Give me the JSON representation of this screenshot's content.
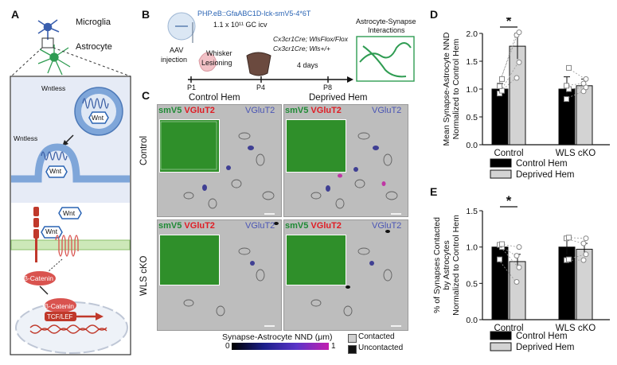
{
  "panels": {
    "A": {
      "label": "A",
      "microglia": "Microglia",
      "astrocyte": "Astrocyte",
      "wntless_1": "Wntless",
      "wntless_2": "Wntless",
      "wnt_1": "Wnt",
      "wnt_2": "Wnt",
      "wnt_3": "Wnt",
      "wnt_4": "Wnt",
      "beta_catenin_1": "β-Catenin",
      "beta_catenin_2": "β-Catenin",
      "tcf_lef": "TCF/LEF"
    },
    "B": {
      "label": "B",
      "virus": "PHP.eB::GfaABC1D-lck-smV5-4*6T",
      "dose": "1.1 x 10¹¹ GC icv",
      "aav_1": "AAV",
      "aav_2": "injection",
      "whisker_1": "Whisker",
      "whisker_2": "Lesioning",
      "genotype_1": "Cx3cr1Cre; WlsFlox/Flox",
      "genotype_2": "Cx3cr1Cre; Wls+/+",
      "duration": "4 days",
      "timepoints": [
        "P1",
        "P4",
        "P8"
      ],
      "interactions_1": "Astrocyte-Synapse",
      "interactions_2": "Interactions"
    },
    "C": {
      "label": "C",
      "col_1": "Control Hem",
      "col_2": "Deprived Hem",
      "row_1": "Control",
      "row_2": "WLS cKO",
      "smv5": "smV5",
      "vglut2": "VGluT2",
      "scale_title": "Synapse-Astrocyte NND (μm)",
      "scale_min": "0",
      "scale_max": "1",
      "contacted": "Contacted",
      "uncontacted": "Uncontacted"
    },
    "D": {
      "label": "D"
    },
    "E": {
      "label": "E"
    }
  },
  "colors": {
    "control_hem": "#000000",
    "deprived_hem": "#d3d3d3",
    "smv5": "#1f8a35",
    "vglut2": "#e01c24",
    "vglut2_blue": "#4a55b5",
    "wnt_blue": "#2a64b4",
    "catenin_red": "#d9534f"
  },
  "chart_data": [
    {
      "type": "bar",
      "panel": "D",
      "categories": [
        "Control",
        "WLS cKO"
      ],
      "series": [
        {
          "name": "Control Hem",
          "values": [
            1.0,
            1.0
          ],
          "errors": [
            0.1,
            0.22
          ]
        },
        {
          "name": "Deprived Hem",
          "values": [
            1.77,
            1.06
          ],
          "errors": [
            0.23,
            0.12
          ]
        }
      ],
      "points": {
        "Control": {
          "Control Hem": [
            0.92,
            0.97,
            1.05,
            1.18
          ],
          "Deprived Hem": [
            1.2,
            1.48,
            1.97,
            2.02
          ]
        },
        "WLS cKO": {
          "Control Hem": [
            0.82,
            1.0,
            1.06,
            1.38
          ],
          "Deprived Hem": [
            0.96,
            1.03,
            1.1,
            1.18
          ]
        }
      },
      "ylabel": "Mean Synapse-Astrocyte NND\nNormalized to Control Hem",
      "ylim": [
        0,
        2.0
      ],
      "yticks": [
        "0.0",
        "0.5",
        "1.0",
        "1.5",
        "2.0"
      ],
      "significance": "*",
      "legend": [
        "Control Hem",
        "Deprived Hem"
      ]
    },
    {
      "type": "bar",
      "panel": "E",
      "categories": [
        "Control",
        "WLS cKO"
      ],
      "series": [
        {
          "name": "Control Hem",
          "values": [
            1.0,
            1.0
          ],
          "errors": [
            0.04,
            0.1
          ]
        },
        {
          "name": "Deprived Hem",
          "values": [
            0.8,
            0.97
          ],
          "errors": [
            0.1,
            0.08
          ]
        }
      ],
      "points": {
        "Control": {
          "Control Hem": [
            0.83,
            1.0,
            1.03,
            1.04
          ],
          "Deprived Hem": [
            0.52,
            0.72,
            0.88,
            1.0
          ]
        },
        "WLS cKO": {
          "Control Hem": [
            0.82,
            0.83,
            1.12,
            1.13
          ],
          "Deprived Hem": [
            0.82,
            0.9,
            1.05,
            1.12
          ]
        }
      },
      "ylabel": "% of Synapses Contacted\nby Astrocytes\nNormalized to Control Hem",
      "ylim": [
        0,
        1.5
      ],
      "yticks": [
        "0.0",
        "0.5",
        "1.0",
        "1.5"
      ],
      "significance": "*",
      "legend": [
        "Control Hem",
        "Deprived Hem"
      ]
    }
  ]
}
